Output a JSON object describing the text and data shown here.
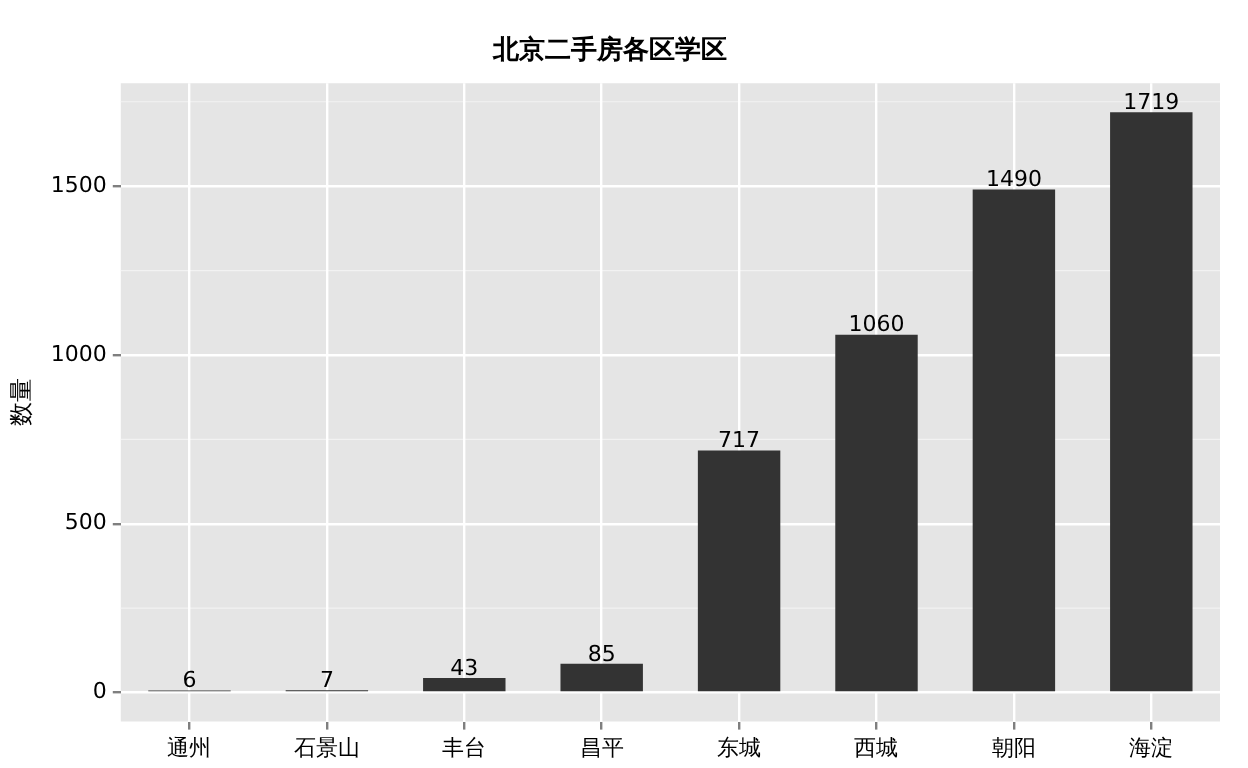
{
  "chart_data": {
    "type": "bar",
    "title": "北京二手房各区学区",
    "ylabel": "数量",
    "categories": [
      "通州",
      "石景山",
      "丰台",
      "昌平",
      "东城",
      "西城",
      "朝阳",
      "海淀"
    ],
    "values": [
      6,
      7,
      43,
      85,
      717,
      1060,
      1490,
      1719
    ],
    "color": "#333333",
    "ylim": [
      -86,
      1805
    ],
    "yticks": [
      0,
      500,
      1000,
      1500
    ],
    "grid": true,
    "data_labels": true,
    "legend": false
  }
}
